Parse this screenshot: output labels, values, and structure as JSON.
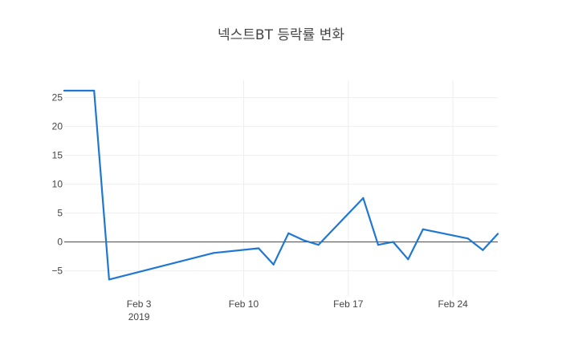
{
  "chart_data": {
    "type": "line",
    "title": "넥스트BT 등락률 변화",
    "xlabel": "",
    "ylabel": "",
    "x_range": [
      "2019-01-29",
      "2019-02-27"
    ],
    "ylim": [
      -9.5,
      28
    ],
    "y_ticks": [
      -5,
      0,
      5,
      10,
      15,
      20,
      25
    ],
    "y_tick_labels": [
      "−5",
      "0",
      "5",
      "10",
      "15",
      "20",
      "25"
    ],
    "x_ticks": [
      {
        "date": "2019-02-03",
        "label": "Feb 3",
        "sublabel": "2019"
      },
      {
        "date": "2019-02-10",
        "label": "Feb 10",
        "sublabel": ""
      },
      {
        "date": "2019-02-17",
        "label": "Feb 17",
        "sublabel": ""
      },
      {
        "date": "2019-02-24",
        "label": "Feb 24",
        "sublabel": ""
      }
    ],
    "grid": true,
    "zeroline": true,
    "series": [
      {
        "color": "#1f77d4",
        "points": [
          {
            "x": "2019-01-29",
            "y": 26.2
          },
          {
            "x": "2019-01-31",
            "y": 26.2
          },
          {
            "x": "2019-02-01",
            "y": -6.5
          },
          {
            "x": "2019-02-08",
            "y": -1.9
          },
          {
            "x": "2019-02-11",
            "y": -1.1
          },
          {
            "x": "2019-02-12",
            "y": -3.9
          },
          {
            "x": "2019-02-13",
            "y": 1.5
          },
          {
            "x": "2019-02-14",
            "y": 0.3
          },
          {
            "x": "2019-02-15",
            "y": -0.5
          },
          {
            "x": "2019-02-18",
            "y": 7.6
          },
          {
            "x": "2019-02-19",
            "y": -0.5
          },
          {
            "x": "2019-02-20",
            "y": 0.0
          },
          {
            "x": "2019-02-21",
            "y": -3.0
          },
          {
            "x": "2019-02-22",
            "y": 2.2
          },
          {
            "x": "2019-02-25",
            "y": 0.6
          },
          {
            "x": "2019-02-26",
            "y": -1.4
          },
          {
            "x": "2019-02-27",
            "y": 1.4
          }
        ]
      }
    ]
  }
}
